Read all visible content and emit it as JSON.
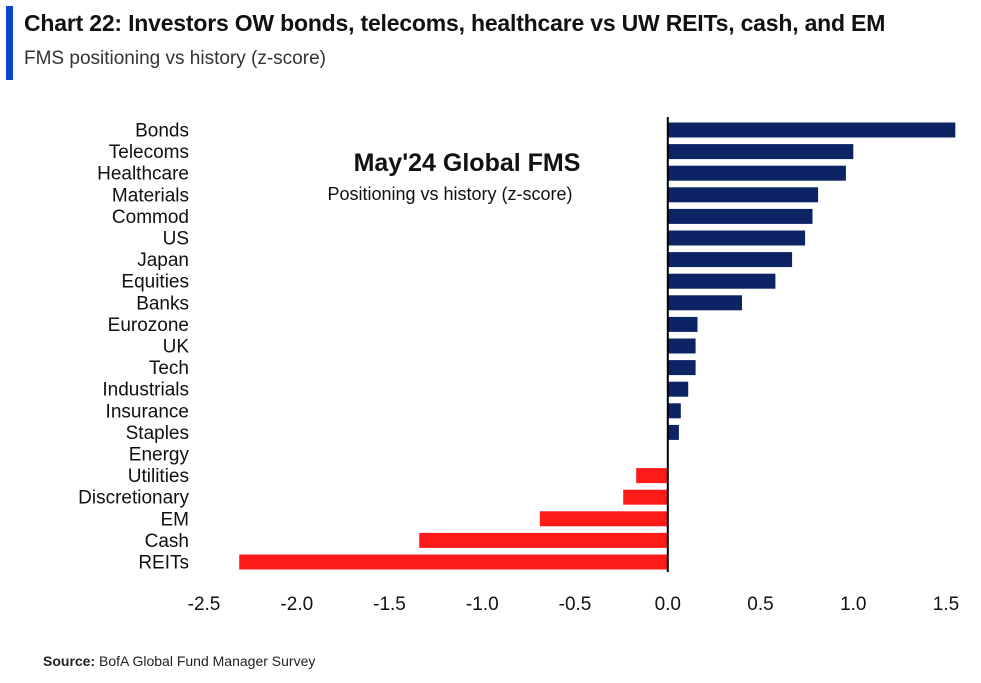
{
  "header": {
    "title": "Chart 22: Investors OW bonds, telecoms, healthcare vs UW REITs, cash, and EM",
    "subtitle": "FMS positioning vs history (z-score)"
  },
  "footer": {
    "source_label": "Source:",
    "source_text": "BofA Global Fund Manager Survey"
  },
  "chart_data": {
    "type": "bar",
    "orientation": "horizontal",
    "annotation": {
      "heading": "May'24 Global FMS",
      "subheading": "Positioning vs history (z-score)"
    },
    "categories": [
      "Bonds",
      "Telecoms",
      "Healthcare",
      "Materials",
      "Commod",
      "US",
      "Japan",
      "Equities",
      "Banks",
      "Eurozone",
      "UK",
      "Tech",
      "Industrials",
      "Insurance",
      "Staples",
      "Energy",
      "Utilities",
      "Discretionary",
      "EM",
      "Cash",
      "REITs"
    ],
    "values": [
      1.55,
      1.0,
      0.96,
      0.81,
      0.78,
      0.74,
      0.67,
      0.58,
      0.4,
      0.16,
      0.15,
      0.15,
      0.11,
      0.07,
      0.06,
      0.0,
      -0.17,
      -0.24,
      -0.69,
      -1.34,
      -2.31
    ],
    "xlim": [
      -2.5,
      1.5
    ],
    "xticks": [
      "-2.5",
      "-2.0",
      "-1.5",
      "-1.0",
      "-0.5",
      "0.0",
      "0.5",
      "1.0",
      "1.5"
    ],
    "xtick_values": [
      -2.5,
      -2.0,
      -1.5,
      -1.0,
      -0.5,
      0.0,
      0.5,
      1.0,
      1.5
    ],
    "colors": {
      "positive": "#0d2464",
      "negative": "#ff1a1a",
      "zero_line": "#000000"
    },
    "grid": false,
    "legend": "none"
  }
}
